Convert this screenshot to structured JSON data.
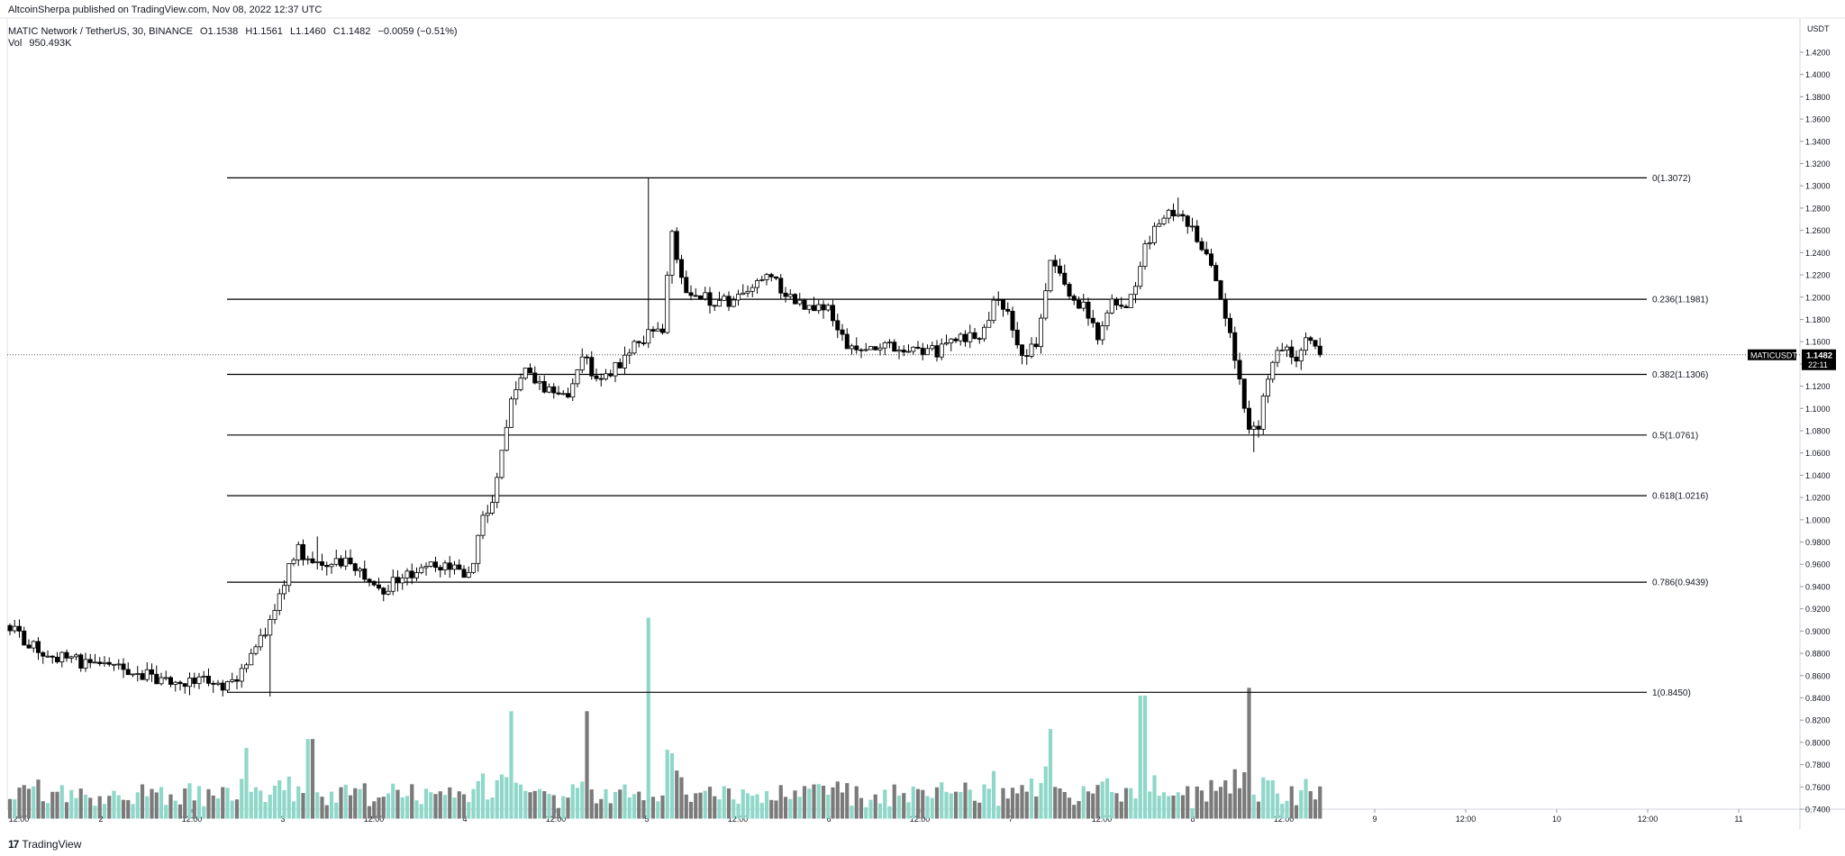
{
  "publisher": "AltcoinSherpa published on TradingView.com, Nov 08, 2022 12:37 UTC",
  "legend": {
    "symbol": "MATIC Network / TetherUS, 30, BINANCE",
    "open": "O1.1538",
    "high": "H1.1561",
    "low": "L1.1460",
    "close": "C1.1482",
    "change": "−0.0059 (−0.51%)",
    "volume_label": "Vol",
    "volume_value": "950.493K"
  },
  "brand": "TradingView",
  "price_tag": {
    "symbol": "MATICUSDT",
    "price": "1.1482",
    "countdown": "22:11"
  },
  "colors": {
    "up_candle": "#ffffff",
    "down_candle": "#000000",
    "up_volume": "#8fd8c9",
    "down_volume": "#7a7a7a",
    "fib_line": "#000000",
    "price_tag_bg": "#000000"
  },
  "chart_data": {
    "type": "candlestick",
    "instrument": "MATIC Network / TetherUS",
    "interval": "30",
    "exchange": "BINANCE",
    "y_axis": {
      "unit": "USDT",
      "ticks": [
        "1.4200",
        "1.4000",
        "1.3800",
        "1.3600",
        "1.3400",
        "1.3200",
        "1.3000",
        "1.2800",
        "1.2600",
        "1.2400",
        "1.2200",
        "1.2000",
        "1.1800",
        "1.1600",
        "1.1400",
        "1.1200",
        "1.1000",
        "1.0800",
        "1.0600",
        "1.0400",
        "1.0200",
        "1.0000",
        "0.9800",
        "0.9600",
        "0.9400",
        "0.9200",
        "0.9000",
        "0.8800",
        "0.8600",
        "0.8400",
        "0.8200",
        "0.8000",
        "0.7800",
        "0.7600",
        "0.7400"
      ],
      "range": [
        0.729,
        1.434
      ]
    },
    "x_axis": {
      "ticks": [
        "12:00",
        "2",
        "12:00",
        "3",
        "12:00",
        "4",
        "12:00",
        "5",
        "12:00",
        "6",
        "12:00",
        "7",
        "12:00",
        "8",
        "12:00",
        "9",
        "12:00",
        "10",
        "12:00",
        "11"
      ]
    },
    "last_price": 1.1482,
    "fibonacci": [
      {
        "label": "0(1.3072)",
        "price": 1.3072
      },
      {
        "label": "0.236(1.1981)",
        "price": 1.1981
      },
      {
        "label": "0.382(1.1306)",
        "price": 1.1306
      },
      {
        "label": "0.5(1.0761)",
        "price": 1.0761
      },
      {
        "label": "0.618(1.0216)",
        "price": 1.0216
      },
      {
        "label": "0.786(0.9439)",
        "price": 0.9439
      },
      {
        "label": "1(0.8450)",
        "price": 0.845
      }
    ],
    "price_path": [
      [
        0.0,
        0.905
      ],
      [
        0.2,
        0.888
      ],
      [
        0.5,
        0.878
      ],
      [
        0.8,
        0.872
      ],
      [
        1.1,
        0.868
      ],
      [
        1.5,
        0.86
      ],
      [
        1.8,
        0.852
      ],
      [
        2.0,
        0.855
      ],
      [
        2.15,
        0.862
      ],
      [
        2.3,
        0.846
      ],
      [
        2.45,
        0.855
      ],
      [
        2.6,
        0.87
      ],
      [
        2.85,
        0.905
      ],
      [
        3.0,
        0.94
      ],
      [
        3.15,
        0.975
      ],
      [
        3.3,
        0.962
      ],
      [
        3.6,
        0.965
      ],
      [
        3.85,
        0.955
      ],
      [
        4.05,
        0.935
      ],
      [
        4.25,
        0.945
      ],
      [
        4.5,
        0.955
      ],
      [
        4.8,
        0.96
      ],
      [
        5.05,
        0.948
      ],
      [
        5.15,
        0.99
      ],
      [
        5.3,
        1.02
      ],
      [
        5.45,
        1.08
      ],
      [
        5.55,
        1.12
      ],
      [
        5.65,
        1.14
      ],
      [
        5.8,
        1.125
      ],
      [
        6.0,
        1.11
      ],
      [
        6.15,
        1.115
      ],
      [
        6.3,
        1.15
      ],
      [
        6.45,
        1.12
      ],
      [
        6.6,
        1.13
      ],
      [
        6.8,
        1.15
      ],
      [
        7.0,
        1.165
      ],
      [
        7.1,
        1.175
      ],
      [
        7.2,
        1.165
      ],
      [
        7.25,
        1.27
      ],
      [
        7.4,
        1.21
      ],
      [
        7.6,
        1.2
      ],
      [
        7.85,
        1.195
      ],
      [
        8.1,
        1.205
      ],
      [
        8.35,
        1.225
      ],
      [
        8.5,
        1.2
      ],
      [
        8.7,
        1.192
      ],
      [
        9.0,
        1.195
      ],
      [
        9.1,
        1.17
      ],
      [
        9.3,
        1.148
      ],
      [
        9.6,
        1.155
      ],
      [
        9.9,
        1.155
      ],
      [
        10.2,
        1.15
      ],
      [
        10.5,
        1.165
      ],
      [
        10.75,
        1.17
      ],
      [
        10.85,
        1.205
      ],
      [
        11.0,
        1.175
      ],
      [
        11.15,
        1.145
      ],
      [
        11.3,
        1.16
      ],
      [
        11.45,
        1.24
      ],
      [
        11.6,
        1.21
      ],
      [
        11.8,
        1.19
      ],
      [
        11.95,
        1.165
      ],
      [
        12.1,
        1.195
      ],
      [
        12.3,
        1.195
      ],
      [
        12.5,
        1.25
      ],
      [
        12.7,
        1.27
      ],
      [
        12.85,
        1.28
      ],
      [
        13.0,
        1.26
      ],
      [
        13.15,
        1.24
      ],
      [
        13.3,
        1.205
      ],
      [
        13.45,
        1.15
      ],
      [
        13.6,
        1.09
      ],
      [
        13.7,
        1.075
      ],
      [
        13.85,
        1.14
      ],
      [
        14.0,
        1.16
      ],
      [
        14.15,
        1.145
      ],
      [
        14.25,
        1.16
      ],
      [
        14.35,
        1.155
      ],
      [
        14.45,
        1.148
      ]
    ],
    "volume_spikes": [
      {
        "x": 7.0,
        "level": 0.912
      },
      {
        "x": 12.45,
        "level": 0.842
      },
      {
        "x": 13.6,
        "level": 0.849
      },
      {
        "x": 5.5,
        "level": 0.828
      },
      {
        "x": 6.35,
        "level": 0.828
      },
      {
        "x": 11.45,
        "level": 0.812
      },
      {
        "x": 3.3,
        "level": 0.803
      },
      {
        "x": 2.6,
        "level": 0.795
      }
    ]
  }
}
